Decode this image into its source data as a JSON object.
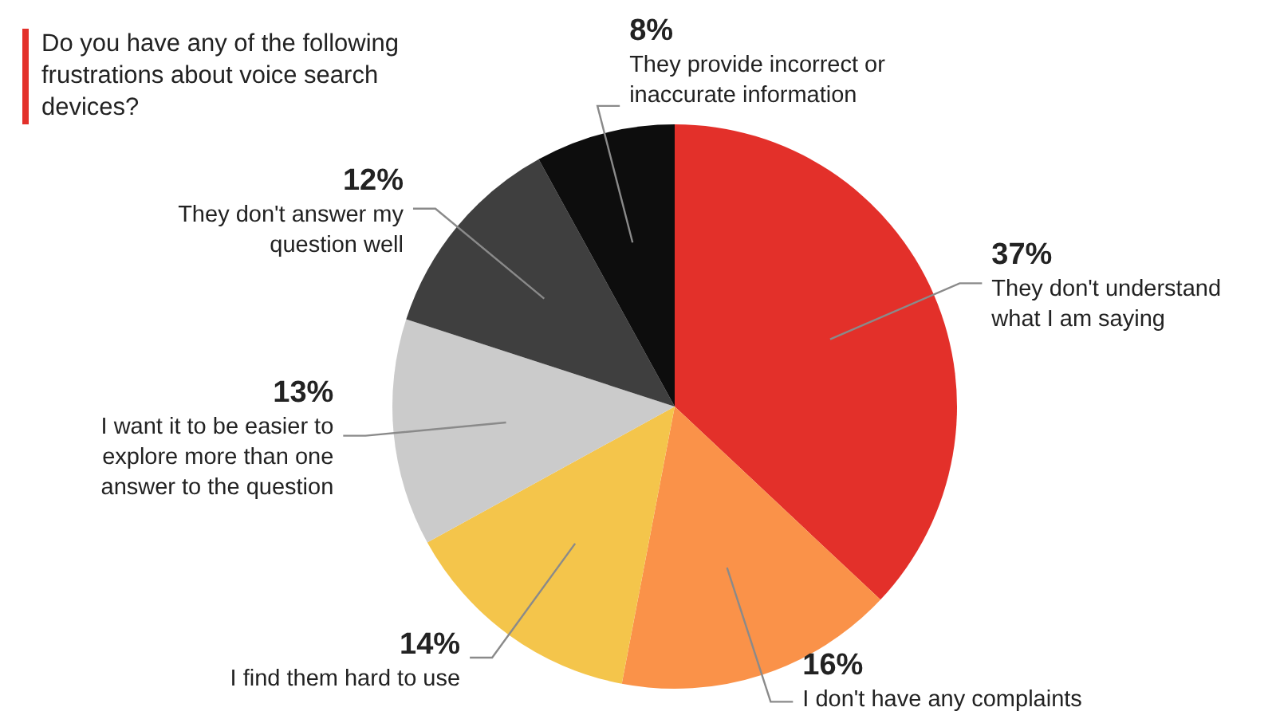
{
  "chart_data": {
    "type": "pie",
    "title": "Do you have any of the following frustrations about voice search devices?",
    "categories": [
      "They don't understand what I am saying",
      "I don't have any complaints",
      "I find them hard to use",
      "I want it to be easier to explore more than one answer to the question",
      "They don't answer my question well",
      "They provide incorrect or inaccurate information"
    ],
    "values": [
      37,
      16,
      14,
      13,
      12,
      8
    ],
    "value_labels": [
      "37%",
      "16%",
      "14%",
      "13%",
      "12%",
      "8%"
    ],
    "colors": [
      "#e3302a",
      "#fa9249",
      "#f4c54b",
      "#cbcbcb",
      "#3f3f3f",
      "#0d0d0d"
    ]
  }
}
